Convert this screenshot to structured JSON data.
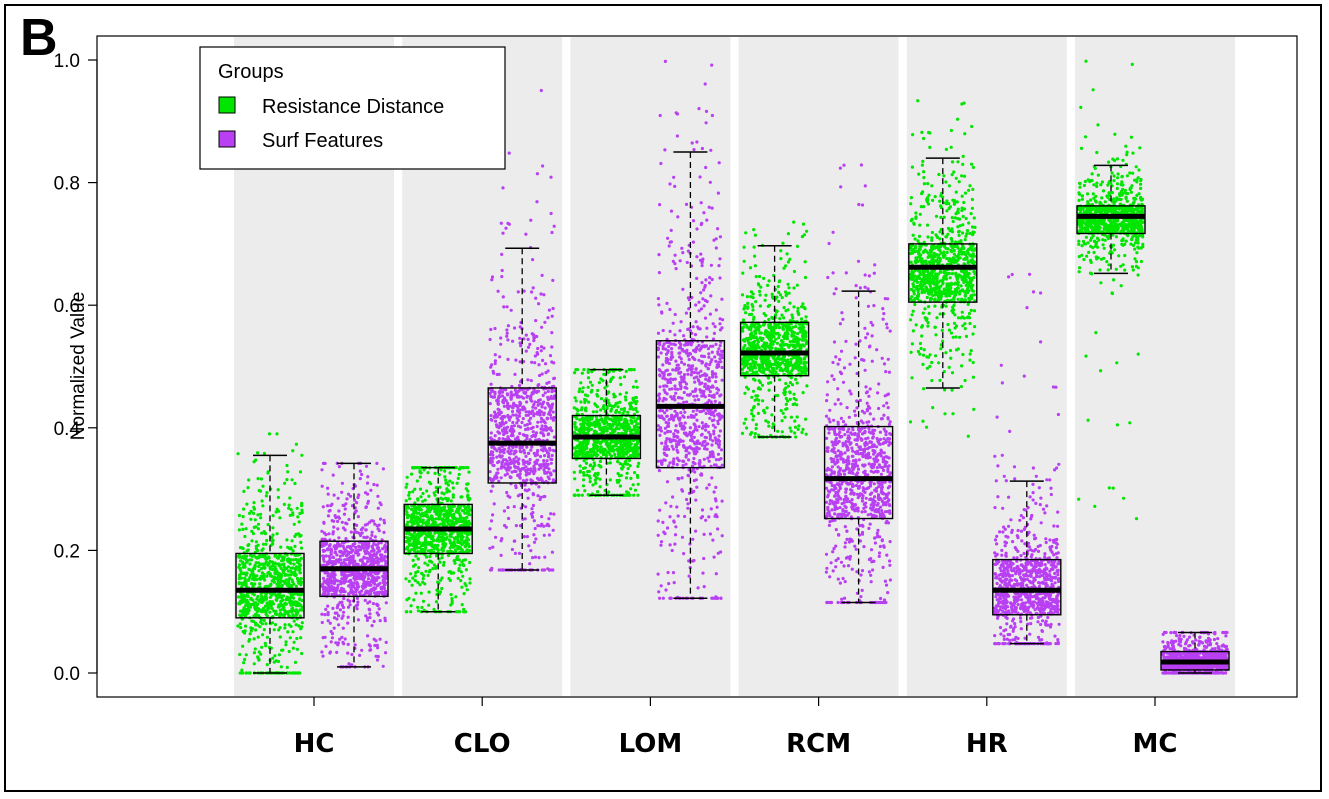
{
  "panel_label": "B",
  "colors": {
    "resistance": "#00e600",
    "surf": "#b840f2",
    "band": "#ececec"
  },
  "chart_data": {
    "type": "box",
    "title": "",
    "ylabel": "Normalized Value",
    "xlabel": "",
    "ylim": [
      0,
      1.0
    ],
    "yticks": [
      "0.0",
      "0.2",
      "0.4",
      "0.6",
      "0.8",
      "1.0"
    ],
    "grid": false,
    "legend": {
      "title": "Groups",
      "position": "top-left",
      "entries": [
        "Resistance Distance",
        "Surf Features"
      ]
    },
    "categories": [
      "HC",
      "CLO",
      "LOM",
      "RCM",
      "HR",
      "MC"
    ],
    "series": [
      {
        "name": "Resistance Distance",
        "boxes": [
          {
            "min": 0.0,
            "q1": 0.09,
            "median": 0.135,
            "q3": 0.195,
            "max": 0.355,
            "spread_low": 0.0,
            "spread_high": 0.39
          },
          {
            "min": 0.1,
            "q1": 0.195,
            "median": 0.235,
            "q3": 0.275,
            "max": 0.335,
            "spread_low": 0.1,
            "spread_high": 0.335
          },
          {
            "min": 0.29,
            "q1": 0.35,
            "median": 0.385,
            "q3": 0.42,
            "max": 0.495,
            "spread_low": 0.29,
            "spread_high": 0.495
          },
          {
            "min": 0.385,
            "q1": 0.485,
            "median": 0.522,
            "q3": 0.572,
            "max": 0.697,
            "spread_low": 0.385,
            "spread_high": 0.74
          },
          {
            "min": 0.465,
            "q1": 0.605,
            "median": 0.662,
            "q3": 0.7,
            "max": 0.84,
            "spread_low": 0.385,
            "spread_high": 0.935
          },
          {
            "min": 0.652,
            "q1": 0.717,
            "median": 0.745,
            "q3": 0.762,
            "max": 0.828,
            "spread_low": 0.25,
            "spread_high": 1.0
          }
        ]
      },
      {
        "name": "Surf Features",
        "boxes": [
          {
            "min": 0.01,
            "q1": 0.125,
            "median": 0.17,
            "q3": 0.215,
            "max": 0.342,
            "spread_low": 0.01,
            "spread_high": 0.342
          },
          {
            "min": 0.168,
            "q1": 0.31,
            "median": 0.375,
            "q3": 0.465,
            "max": 0.693,
            "spread_low": 0.168,
            "spread_high": 0.96
          },
          {
            "min": 0.122,
            "q1": 0.335,
            "median": 0.435,
            "q3": 0.542,
            "max": 0.85,
            "spread_low": 0.122,
            "spread_high": 1.0
          },
          {
            "min": 0.115,
            "q1": 0.252,
            "median": 0.317,
            "q3": 0.402,
            "max": 0.623,
            "spread_low": 0.115,
            "spread_high": 0.84
          },
          {
            "min": 0.048,
            "q1": 0.095,
            "median": 0.135,
            "q3": 0.185,
            "max": 0.313,
            "spread_low": 0.048,
            "spread_high": 0.66
          },
          {
            "min": 0.0,
            "q1": 0.005,
            "median": 0.018,
            "q3": 0.035,
            "max": 0.066,
            "spread_low": 0.0,
            "spread_high": 0.066
          }
        ]
      }
    ]
  }
}
